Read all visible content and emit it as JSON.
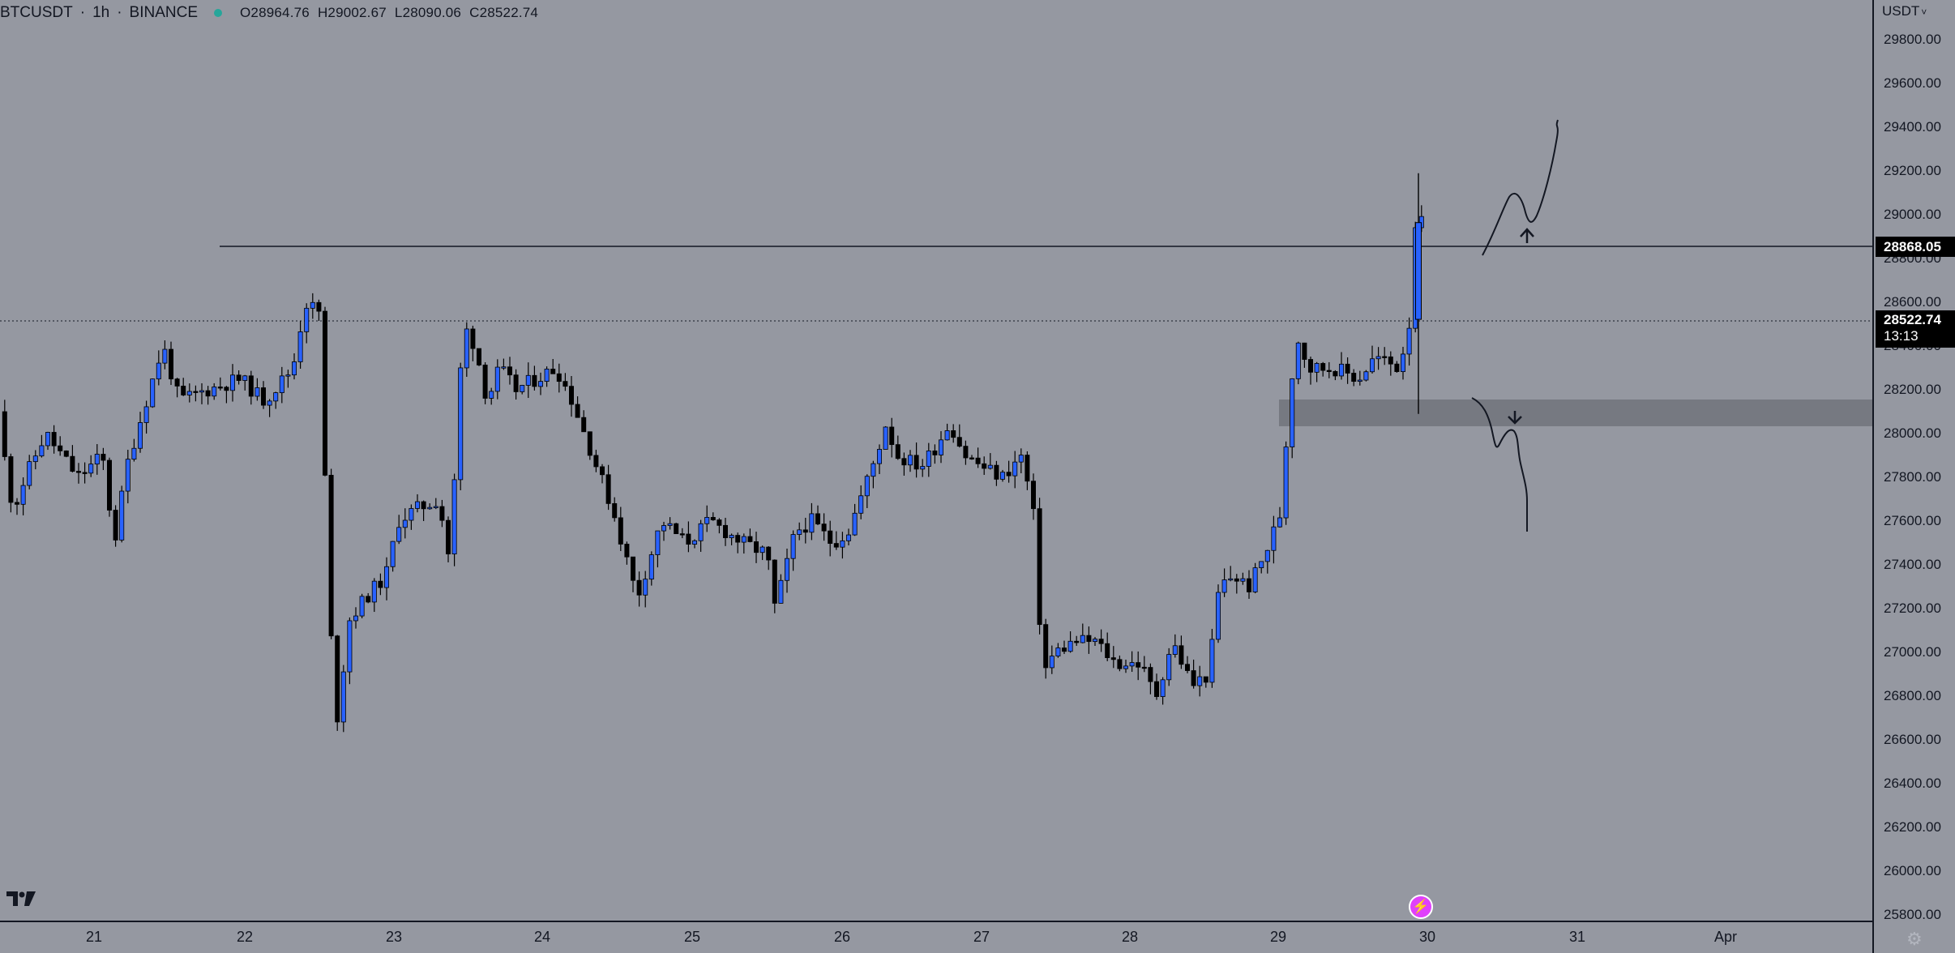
{
  "header": {
    "symbol": "BTCUSDT",
    "interval": "1h",
    "exchange": "BINANCE",
    "market_status_color": "#26a69a",
    "open": "O28964.76",
    "high": "H29002.67",
    "low": "L28090.06",
    "close": "C28522.74"
  },
  "price_axis": {
    "currency": "USDT",
    "ticks": [
      "29800.00",
      "29600.00",
      "29400.00",
      "29200.00",
      "29000.00",
      "28800.00",
      "28600.00",
      "28400.00",
      "28200.00",
      "28000.00",
      "27800.00",
      "27600.00",
      "27400.00",
      "27200.00",
      "27000.00",
      "26800.00",
      "26600.00",
      "26400.00",
      "26200.00",
      "26000.00",
      "25800.00"
    ],
    "horizontal_line_price": "28868.05",
    "last_price": "28522.74",
    "countdown": "13:13"
  },
  "time_axis": {
    "labels": [
      "21",
      "22",
      "23",
      "24",
      "25",
      "26",
      "27",
      "28",
      "29",
      "30",
      "31",
      "Apr"
    ]
  },
  "colors": {
    "background": "#9598a1",
    "bull_body": "#2962ff",
    "bear_body": "#000000",
    "zone": "#5d6068"
  },
  "icons": {
    "logo": "tradingview-logo-icon",
    "alert": "lightning-bolt-icon",
    "settings": "gear-icon"
  }
}
